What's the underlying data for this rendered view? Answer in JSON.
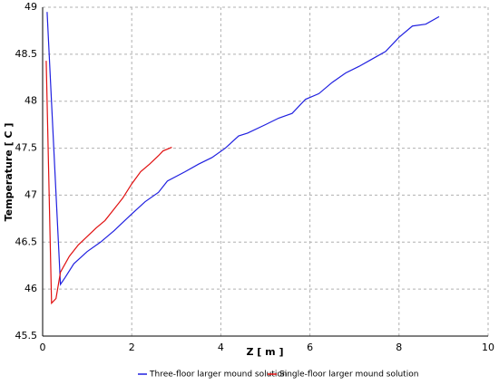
{
  "chart_data": {
    "type": "line",
    "x_label": "Z [ m ]",
    "y_label": "Temperature [ C ]",
    "xlim": [
      0,
      10
    ],
    "xticks": [
      0,
      2,
      4,
      6,
      8,
      10
    ],
    "ylim": [
      45.5,
      49
    ],
    "yticks": [
      45.5,
      46,
      46.5,
      47,
      47.5,
      48,
      48.5,
      49
    ],
    "grid": true,
    "legend": "bottom",
    "series": [
      {
        "name": "Three-floor larger mound solution",
        "color": "#2020e0",
        "x": [
          0.1,
          0.4,
          0.5,
          0.7,
          1.0,
          1.3,
          1.6,
          2.0,
          2.3,
          2.6,
          2.8,
          3.2,
          3.5,
          3.8,
          4.1,
          4.4,
          4.6,
          5.0,
          5.3,
          5.6,
          5.9,
          6.2,
          6.5,
          6.8,
          7.1,
          7.4,
          7.7,
          8.0,
          8.3,
          8.6,
          8.9
        ],
        "values": [
          48.95,
          46.05,
          46.12,
          46.27,
          46.4,
          46.5,
          46.62,
          46.8,
          46.93,
          47.03,
          47.15,
          47.25,
          47.33,
          47.4,
          47.5,
          47.63,
          47.66,
          47.75,
          47.82,
          47.87,
          48.02,
          48.08,
          48.2,
          48.3,
          48.37,
          48.45,
          48.53,
          48.68,
          48.8,
          48.82,
          48.9
        ]
      },
      {
        "name": "Single-floor larger mound solution",
        "color": "#e01010",
        "x": [
          0.08,
          0.2,
          0.3,
          0.4,
          0.6,
          0.8,
          1.0,
          1.2,
          1.4,
          1.6,
          1.8,
          2.0,
          2.2,
          2.4,
          2.6,
          2.7,
          2.9
        ],
        "values": [
          48.43,
          45.85,
          45.9,
          46.18,
          46.35,
          46.47,
          46.56,
          46.65,
          46.73,
          46.85,
          46.97,
          47.12,
          47.25,
          47.33,
          47.42,
          47.47,
          47.51
        ]
      }
    ]
  }
}
